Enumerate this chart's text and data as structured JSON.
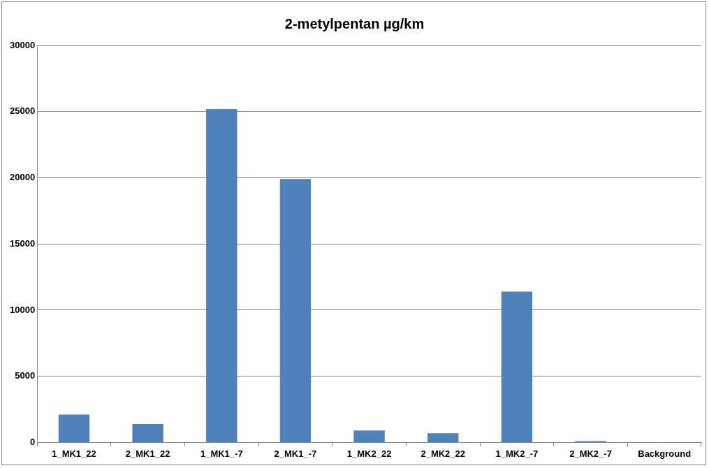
{
  "chart_data": {
    "type": "bar",
    "title": "2-metylpentan µg/km",
    "categories": [
      "1_MK1_22",
      "2_MK1_22",
      "1_MK1_-7",
      "2_MK1_-7",
      "1_MK2_22",
      "2_MK2_22",
      "1_MK2_-7",
      "2_MK2_-7",
      "Background"
    ],
    "values": [
      2100,
      1400,
      25200,
      19900,
      900,
      700,
      11400,
      100,
      0
    ],
    "color": "#4f81bd",
    "ylim": [
      0,
      30000
    ],
    "yticks": [
      0,
      5000,
      10000,
      15000,
      20000,
      25000,
      30000
    ],
    "grid": "y",
    "legend": false
  }
}
